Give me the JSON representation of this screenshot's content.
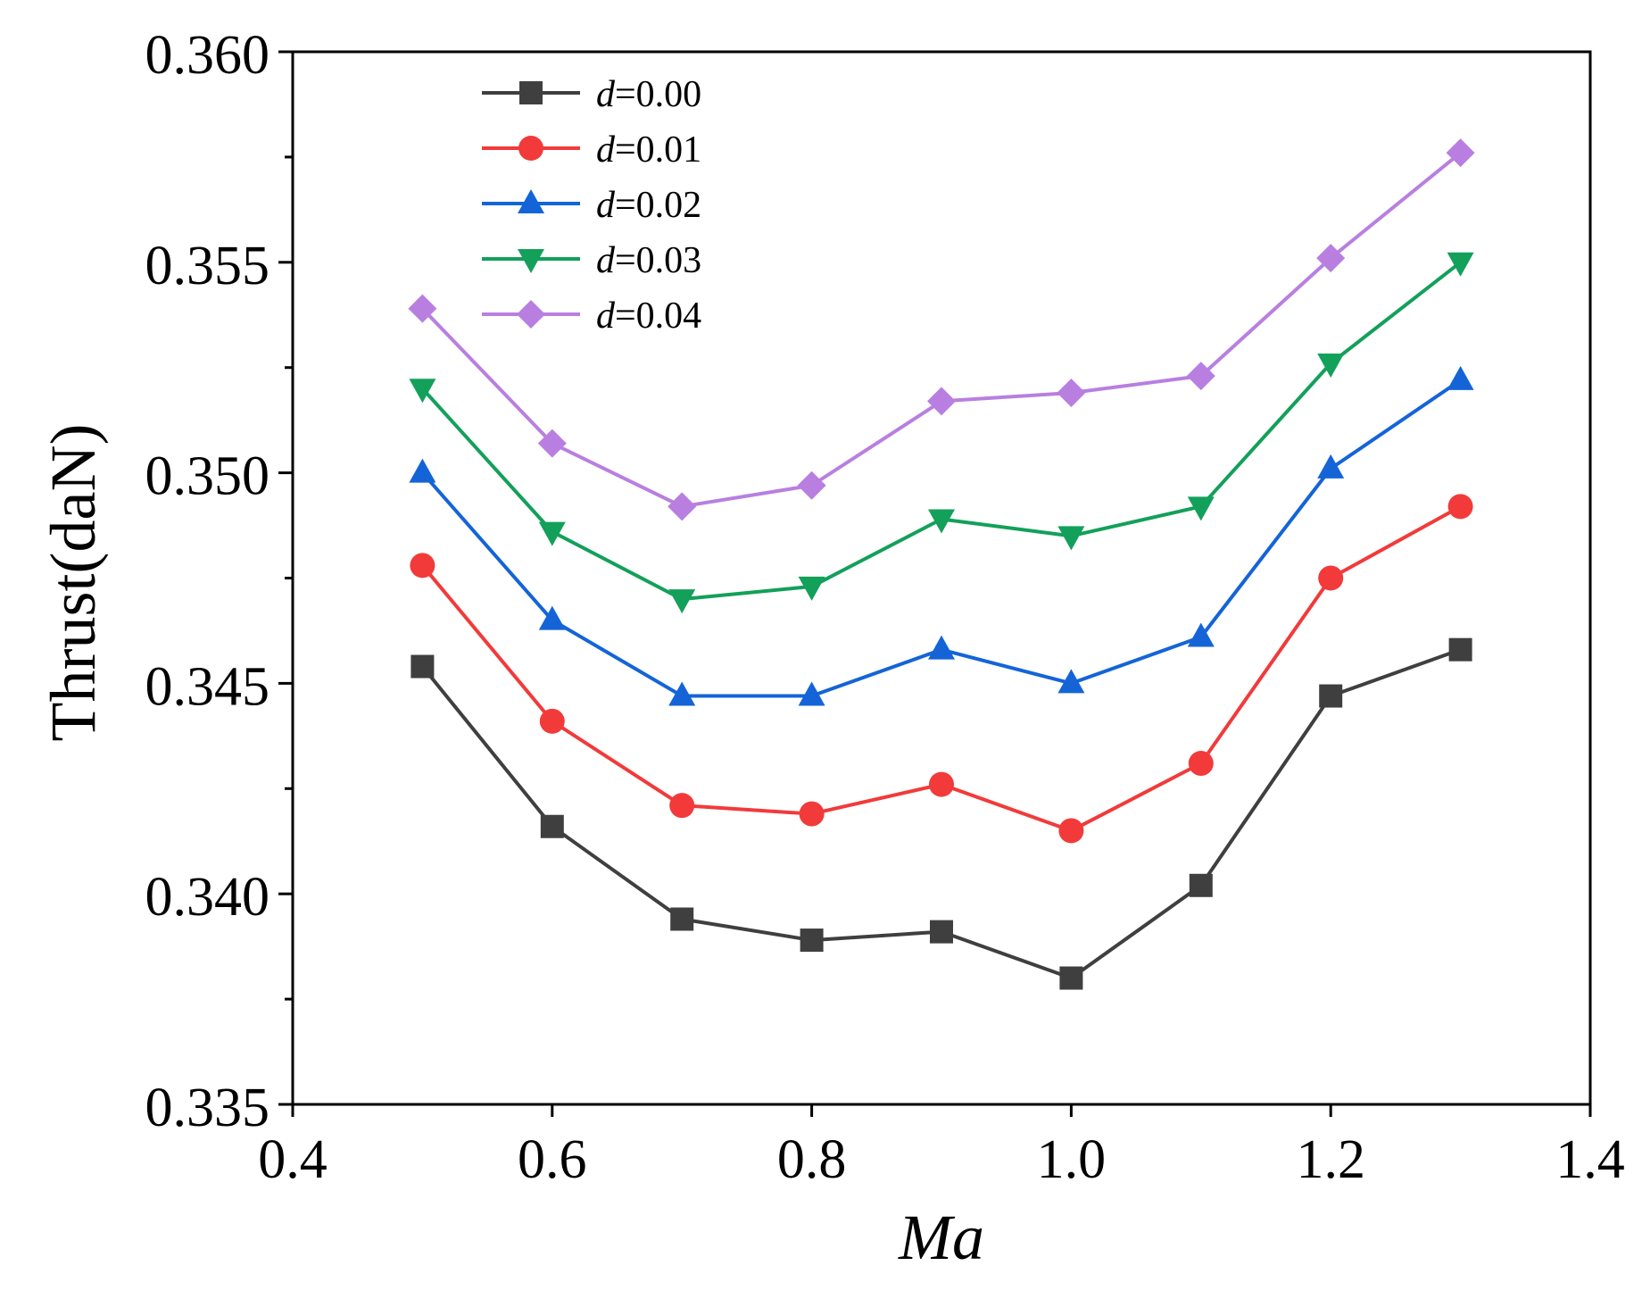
{
  "chart_data": {
    "type": "line",
    "title": "",
    "xlabel": "Ma",
    "ylabel": "Thrust(daN)",
    "xlim": [
      0.4,
      1.4
    ],
    "ylim": [
      0.335,
      0.36
    ],
    "x_ticks": [
      0.4,
      0.6,
      0.8,
      1.0,
      1.2,
      1.4
    ],
    "x_tick_labels": [
      "0.4",
      "0.6",
      "0.8",
      "1.0",
      "1.2",
      "1.4"
    ],
    "y_ticks": [
      0.335,
      0.34,
      0.345,
      0.35,
      0.355,
      0.36
    ],
    "y_tick_labels": [
      "0.335",
      "0.340",
      "0.345",
      "0.350",
      "0.355",
      "0.360"
    ],
    "y_minor_ticks": [
      0.3375,
      0.3425,
      0.3475,
      0.3525,
      0.3575
    ],
    "grid": false,
    "legend_position": "top-left",
    "x": [
      0.5,
      0.6,
      0.7,
      0.8,
      0.9,
      1.0,
      1.1,
      1.2,
      1.3
    ],
    "series": [
      {
        "name": "d=0.00",
        "var": "d",
        "rest": "=0.00",
        "color": "#3f3f3f",
        "marker": "square",
        "values": [
          0.3454,
          0.3416,
          0.3394,
          0.3389,
          0.3391,
          0.338,
          0.3402,
          0.3447,
          0.3458
        ]
      },
      {
        "name": "d=0.01",
        "var": "d",
        "rest": "=0.01",
        "color": "#f23a3a",
        "marker": "circle",
        "values": [
          0.3478,
          0.3441,
          0.3421,
          0.3419,
          0.3426,
          0.3415,
          0.3431,
          0.3475,
          0.3492
        ]
      },
      {
        "name": "d=0.02",
        "var": "d",
        "rest": "=0.02",
        "color": "#1464d8",
        "marker": "triangle-up",
        "values": [
          0.35,
          0.3465,
          0.3447,
          0.3447,
          0.3458,
          0.345,
          0.3461,
          0.3501,
          0.3522
        ]
      },
      {
        "name": "d=0.03",
        "var": "d",
        "rest": "=0.03",
        "color": "#13a05a",
        "marker": "triangle-down",
        "values": [
          0.352,
          0.3486,
          0.347,
          0.3473,
          0.3489,
          0.3485,
          0.3492,
          0.3526,
          0.355
        ]
      },
      {
        "name": "d=0.04",
        "var": "d",
        "rest": "=0.04",
        "color": "#b87fe0",
        "marker": "diamond",
        "values": [
          0.3539,
          0.3507,
          0.3492,
          0.3497,
          0.3517,
          0.3519,
          0.3523,
          0.3551,
          0.3576
        ]
      }
    ]
  }
}
